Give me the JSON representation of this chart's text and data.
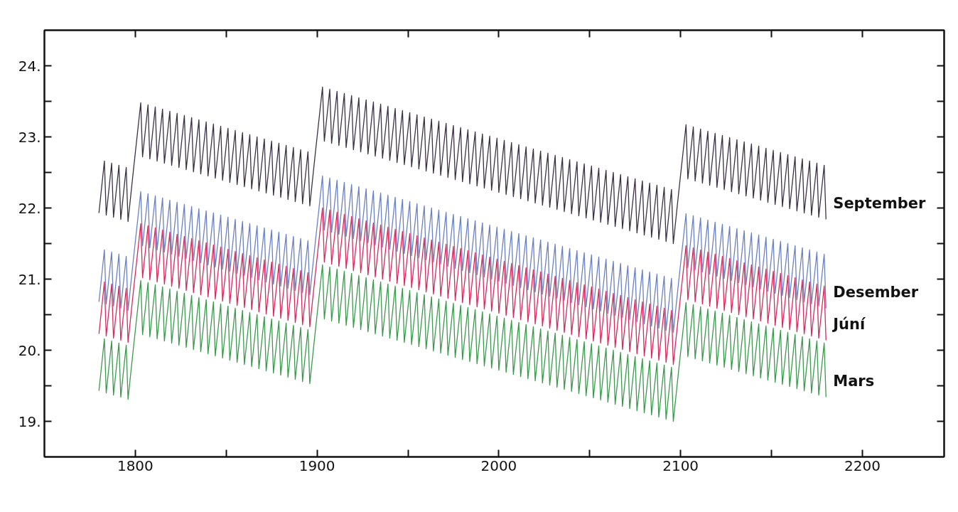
{
  "chart_data": {
    "type": "line",
    "x": [
      1780,
      1783,
      1784,
      1787,
      1788,
      1791,
      1792,
      1795,
      1796,
      1799,
      1803,
      1804,
      1807,
      1808,
      1811,
      1812,
      1815,
      1816,
      1819,
      1820,
      1823,
      1824,
      1827,
      1828,
      1831,
      1832,
      1835,
      1836,
      1839,
      1840,
      1843,
      1844,
      1847,
      1848,
      1851,
      1852,
      1855,
      1856,
      1859,
      1860,
      1863,
      1864,
      1867,
      1868,
      1871,
      1872,
      1875,
      1876,
      1879,
      1880,
      1883,
      1884,
      1887,
      1888,
      1891,
      1892,
      1895,
      1896,
      1899,
      1903,
      1904,
      1907,
      1908,
      1911,
      1912,
      1915,
      1916,
      1919,
      1920,
      1923,
      1924,
      1927,
      1928,
      1931,
      1932,
      1935,
      1936,
      1939,
      1940,
      1943,
      1944,
      1947,
      1948,
      1951,
      1952,
      1955,
      1956,
      1959,
      1960,
      1963,
      1964,
      1967,
      1968,
      1971,
      1972,
      1975,
      1976,
      1979,
      1980,
      1983,
      1984,
      1987,
      1988,
      1991,
      1992,
      1995,
      1996,
      1999,
      2000,
      2003,
      2004,
      2007,
      2008,
      2011,
      2012,
      2015,
      2016,
      2019,
      2020,
      2023,
      2024,
      2027,
      2028,
      2031,
      2032,
      2035,
      2036,
      2039,
      2040,
      2043,
      2044,
      2047,
      2048,
      2051,
      2052,
      2055,
      2056,
      2059,
      2060,
      2063,
      2064,
      2067,
      2068,
      2071,
      2072,
      2075,
      2076,
      2079,
      2080,
      2083,
      2084,
      2087,
      2088,
      2091,
      2092,
      2095,
      2096,
      2099,
      2103,
      2104,
      2107,
      2108,
      2111,
      2112,
      2115,
      2116,
      2119,
      2120,
      2123,
      2124,
      2127,
      2128,
      2131,
      2132,
      2135,
      2136,
      2139,
      2140,
      2143,
      2144,
      2147,
      2148,
      2151,
      2152,
      2155,
      2156,
      2159,
      2160,
      2163,
      2164,
      2167,
      2168,
      2171,
      2172,
      2175,
      2176,
      2179,
      2180
    ],
    "series": [
      {
        "name": "September",
        "color": "#3a3044",
        "values": [
          22.43,
          23.16,
          22.4,
          23.13,
          22.37,
          23.1,
          22.34,
          23.07,
          22.31,
          23.04,
          23.98,
          23.22,
          23.95,
          23.19,
          23.92,
          23.16,
          23.89,
          23.13,
          23.86,
          23.1,
          23.83,
          23.07,
          23.8,
          23.04,
          23.77,
          23.01,
          23.74,
          22.98,
          23.71,
          22.95,
          23.68,
          22.92,
          23.65,
          22.89,
          23.62,
          22.86,
          23.59,
          22.83,
          23.56,
          22.8,
          23.53,
          22.77,
          23.5,
          22.74,
          23.47,
          22.71,
          23.44,
          22.68,
          23.41,
          22.65,
          23.38,
          22.62,
          23.35,
          22.59,
          23.32,
          22.56,
          23.29,
          22.53,
          23.26,
          24.2,
          23.44,
          24.17,
          23.41,
          24.14,
          23.38,
          24.11,
          23.35,
          24.08,
          23.32,
          24.05,
          23.29,
          24.02,
          23.26,
          23.99,
          23.23,
          23.96,
          23.2,
          23.93,
          23.17,
          23.9,
          23.14,
          23.87,
          23.11,
          23.84,
          23.08,
          23.81,
          23.05,
          23.78,
          23.02,
          23.75,
          22.99,
          23.72,
          22.96,
          23.69,
          22.93,
          23.66,
          22.9,
          23.63,
          22.87,
          23.6,
          22.84,
          23.57,
          22.81,
          23.54,
          22.78,
          23.51,
          22.75,
          23.48,
          22.72,
          23.45,
          22.69,
          23.42,
          22.66,
          23.39,
          22.63,
          23.36,
          22.6,
          23.33,
          22.57,
          23.3,
          22.54,
          23.27,
          22.51,
          23.24,
          22.48,
          23.21,
          22.45,
          23.18,
          22.42,
          23.15,
          22.39,
          23.12,
          22.36,
          23.09,
          22.33,
          23.06,
          22.3,
          23.03,
          22.27,
          23.0,
          22.24,
          22.97,
          22.21,
          22.94,
          22.18,
          22.91,
          22.15,
          22.88,
          22.12,
          22.85,
          22.09,
          22.82,
          22.06,
          22.79,
          22.03,
          22.76,
          22.0,
          22.73,
          23.67,
          22.91,
          23.64,
          22.88,
          23.61,
          22.85,
          23.58,
          22.82,
          23.55,
          22.79,
          23.52,
          22.76,
          23.49,
          22.73,
          23.46,
          22.7,
          23.43,
          22.67,
          23.4,
          22.64,
          23.37,
          22.61,
          23.34,
          22.58,
          23.31,
          22.55,
          23.28,
          22.52,
          23.25,
          22.49,
          23.22,
          22.46,
          23.19,
          22.43,
          23.16,
          22.4,
          23.13,
          22.37,
          23.1,
          22.34
        ]
      },
      {
        "name": "Desember",
        "color": "#6a80c4",
        "values": [
          21.18,
          21.91,
          21.15,
          21.88,
          21.12,
          21.85,
          21.09,
          21.82,
          21.06,
          21.79,
          22.73,
          21.97,
          22.7,
          21.94,
          22.67,
          21.91,
          22.64,
          21.88,
          22.61,
          21.85,
          22.58,
          21.82,
          22.55,
          21.79,
          22.52,
          21.76,
          22.49,
          21.73,
          22.46,
          21.7,
          22.43,
          21.67,
          22.4,
          21.64,
          22.37,
          21.61,
          22.34,
          21.58,
          22.31,
          21.55,
          22.28,
          21.52,
          22.25,
          21.49,
          22.22,
          21.46,
          22.19,
          21.43,
          22.16,
          21.4,
          22.13,
          21.37,
          22.1,
          21.34,
          22.07,
          21.31,
          22.04,
          21.28,
          22.01,
          22.95,
          22.19,
          22.92,
          22.16,
          22.89,
          22.13,
          22.86,
          22.1,
          22.83,
          22.07,
          22.8,
          22.04,
          22.77,
          22.01,
          22.74,
          21.98,
          22.71,
          21.95,
          22.68,
          21.92,
          22.65,
          21.89,
          22.62,
          21.86,
          22.59,
          21.83,
          22.56,
          21.8,
          22.53,
          21.77,
          22.5,
          21.74,
          22.47,
          21.71,
          22.44,
          21.68,
          22.41,
          21.65,
          22.38,
          21.62,
          22.35,
          21.59,
          22.32,
          21.56,
          22.29,
          21.53,
          22.26,
          21.5,
          22.23,
          21.47,
          22.2,
          21.44,
          22.17,
          21.41,
          22.14,
          21.38,
          22.11,
          21.35,
          22.08,
          21.32,
          22.05,
          21.29,
          22.02,
          21.26,
          21.99,
          21.23,
          21.96,
          21.2,
          21.93,
          21.17,
          21.9,
          21.14,
          21.87,
          21.11,
          21.84,
          21.08,
          21.81,
          21.05,
          21.78,
          21.02,
          21.75,
          20.99,
          21.72,
          20.96,
          21.69,
          20.93,
          21.66,
          20.9,
          21.63,
          20.87,
          21.6,
          20.84,
          21.57,
          20.81,
          21.54,
          20.78,
          21.51,
          20.75,
          21.48,
          22.42,
          21.66,
          22.39,
          21.63,
          22.36,
          21.6,
          22.33,
          21.57,
          22.3,
          21.54,
          22.27,
          21.51,
          22.24,
          21.48,
          22.21,
          21.45,
          22.18,
          21.42,
          22.15,
          21.39,
          22.12,
          21.36,
          22.09,
          21.33,
          22.06,
          21.3,
          22.03,
          21.27,
          22.0,
          21.24,
          21.97,
          21.21,
          21.94,
          21.18,
          21.91,
          21.15,
          21.88,
          21.12,
          21.85,
          21.09
        ]
      },
      {
        "name": "Júní",
        "color": "#d8285c",
        "values": [
          20.73,
          21.46,
          20.7,
          21.43,
          20.67,
          21.4,
          20.64,
          21.37,
          20.61,
          21.34,
          22.28,
          21.52,
          22.25,
          21.49,
          22.22,
          21.46,
          22.19,
          21.43,
          22.16,
          21.4,
          22.13,
          21.37,
          22.1,
          21.34,
          22.07,
          21.31,
          22.04,
          21.28,
          22.01,
          21.25,
          21.98,
          21.22,
          21.95,
          21.19,
          21.92,
          21.16,
          21.89,
          21.13,
          21.86,
          21.1,
          21.83,
          21.07,
          21.8,
          21.04,
          21.77,
          21.01,
          21.74,
          20.98,
          21.71,
          20.95,
          21.68,
          20.92,
          21.65,
          20.89,
          21.62,
          20.86,
          21.59,
          20.83,
          21.56,
          22.5,
          21.74,
          22.47,
          21.71,
          22.44,
          21.68,
          22.41,
          21.65,
          22.38,
          21.62,
          22.35,
          21.59,
          22.32,
          21.56,
          22.29,
          21.53,
          22.26,
          21.5,
          22.23,
          21.47,
          22.2,
          21.44,
          22.17,
          21.41,
          22.14,
          21.38,
          22.11,
          21.35,
          22.08,
          21.32,
          22.05,
          21.29,
          22.02,
          21.26,
          21.99,
          21.23,
          21.96,
          21.2,
          21.93,
          21.17,
          21.9,
          21.14,
          21.87,
          21.11,
          21.84,
          21.08,
          21.81,
          21.05,
          21.78,
          21.02,
          21.75,
          20.99,
          21.72,
          20.96,
          21.69,
          20.93,
          21.66,
          20.9,
          21.63,
          20.87,
          21.6,
          20.84,
          21.57,
          20.81,
          21.54,
          20.78,
          21.51,
          20.75,
          21.48,
          20.72,
          21.45,
          20.69,
          21.42,
          20.66,
          21.39,
          20.63,
          21.36,
          20.6,
          21.33,
          20.57,
          21.3,
          20.54,
          21.27,
          20.51,
          21.24,
          20.48,
          21.21,
          20.45,
          21.18,
          20.42,
          21.15,
          20.39,
          21.12,
          20.36,
          21.09,
          20.33,
          21.06,
          20.3,
          21.03,
          21.97,
          21.21,
          21.94,
          21.18,
          21.91,
          21.15,
          21.88,
          21.12,
          21.85,
          21.09,
          21.82,
          21.06,
          21.79,
          21.03,
          21.76,
          21.0,
          21.73,
          20.97,
          21.7,
          20.94,
          21.67,
          20.91,
          21.64,
          20.88,
          21.61,
          20.85,
          21.58,
          20.82,
          21.55,
          20.79,
          21.52,
          20.76,
          21.49,
          20.73,
          21.46,
          20.7,
          21.43,
          20.67,
          21.4,
          20.64
        ]
      },
      {
        "name": "Mars",
        "color": "#3a9a4c",
        "values": [
          19.93,
          20.66,
          19.9,
          20.63,
          19.87,
          20.6,
          19.84,
          20.57,
          19.81,
          20.54,
          21.48,
          20.72,
          21.45,
          20.69,
          21.42,
          20.66,
          21.39,
          20.63,
          21.36,
          20.6,
          21.33,
          20.57,
          21.3,
          20.54,
          21.27,
          20.51,
          21.24,
          20.48,
          21.21,
          20.45,
          21.18,
          20.42,
          21.15,
          20.39,
          21.12,
          20.36,
          21.09,
          20.33,
          21.06,
          20.3,
          21.03,
          20.27,
          21.0,
          20.24,
          20.97,
          20.21,
          20.94,
          20.18,
          20.91,
          20.15,
          20.88,
          20.12,
          20.85,
          20.09,
          20.82,
          20.06,
          20.79,
          20.03,
          20.76,
          21.7,
          20.94,
          21.67,
          20.91,
          21.64,
          20.88,
          21.61,
          20.85,
          21.58,
          20.82,
          21.55,
          20.79,
          21.52,
          20.76,
          21.49,
          20.73,
          21.46,
          20.7,
          21.43,
          20.67,
          21.4,
          20.64,
          21.37,
          20.61,
          21.34,
          20.58,
          21.31,
          20.55,
          21.28,
          20.52,
          21.25,
          20.49,
          21.22,
          20.46,
          21.19,
          20.43,
          21.16,
          20.4,
          21.13,
          20.37,
          21.1,
          20.34,
          21.07,
          20.31,
          21.04,
          20.28,
          21.01,
          20.25,
          20.98,
          20.22,
          20.95,
          20.19,
          20.92,
          20.16,
          20.89,
          20.13,
          20.86,
          20.1,
          20.83,
          20.07,
          20.8,
          20.04,
          20.77,
          20.01,
          20.74,
          19.98,
          20.71,
          19.95,
          20.68,
          19.92,
          20.65,
          19.89,
          20.62,
          19.86,
          20.59,
          19.83,
          20.56,
          19.8,
          20.53,
          19.77,
          20.5,
          19.74,
          20.47,
          19.71,
          20.44,
          19.68,
          20.41,
          19.65,
          20.38,
          19.62,
          20.35,
          19.59,
          20.32,
          19.56,
          20.29,
          19.53,
          20.26,
          19.5,
          20.23,
          21.17,
          20.41,
          21.14,
          20.38,
          21.11,
          20.35,
          21.08,
          20.32,
          21.05,
          20.29,
          21.02,
          20.26,
          20.99,
          20.23,
          20.96,
          20.2,
          20.93,
          20.17,
          20.9,
          20.14,
          20.87,
          20.11,
          20.84,
          20.08,
          20.81,
          20.05,
          20.78,
          20.02,
          20.75,
          19.99,
          20.72,
          19.96,
          20.69,
          19.93,
          20.66,
          19.9,
          20.63,
          19.87,
          20.6,
          19.84
        ]
      }
    ],
    "xlim": [
      1750,
      2245
    ],
    "ylim": [
      19,
      25
    ],
    "xticks": [
      1800,
      {
        "value": 1850,
        "label": null
      },
      1900,
      {
        "value": 1950,
        "label": null
      },
      2000,
      {
        "value": 2050,
        "label": null
      },
      2100,
      {
        "value": 2150,
        "label": null
      },
      2200
    ],
    "yticks": [
      {
        "value": 19.5,
        "label": "19."
      },
      {
        "value": 20,
        "label": null
      },
      {
        "value": 20.5,
        "label": "20."
      },
      {
        "value": 21,
        "label": null
      },
      {
        "value": 21.5,
        "label": "21."
      },
      {
        "value": 22,
        "label": null
      },
      {
        "value": 22.5,
        "label": "22."
      },
      {
        "value": 23,
        "label": null
      },
      {
        "value": 23.5,
        "label": "23."
      },
      {
        "value": 24,
        "label": null
      },
      {
        "value": 24.5,
        "label": "24."
      }
    ],
    "grid": false,
    "legend": false,
    "marker": "none",
    "line_style": "solid"
  }
}
